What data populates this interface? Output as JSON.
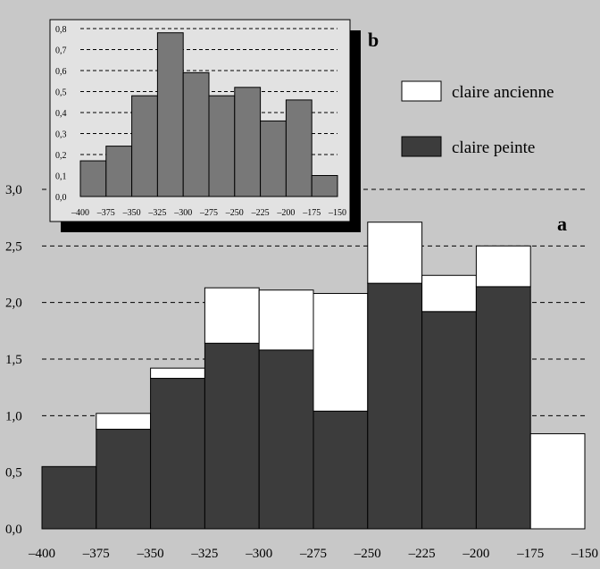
{
  "colors": {
    "background": "#c8c8c8",
    "inset_background": "#e2e2e2",
    "claire_peinte": "#3c3c3c",
    "claire_ancienne": "#ffffff",
    "inset_bars": "#787878",
    "grid": "#000000"
  },
  "legend": [
    {
      "label": "claire ancienne",
      "color": "#ffffff"
    },
    {
      "label": "claire peinte",
      "color": "#3c3c3c"
    }
  ],
  "chart_data": [
    {
      "panel": "a",
      "type": "bar",
      "stacked": true,
      "bin_edges": [
        -400,
        -375,
        -350,
        -325,
        -300,
        -275,
        -250,
        -225,
        -200,
        -175,
        -150
      ],
      "series": [
        {
          "name": "claire peinte",
          "values": [
            0.55,
            0.88,
            1.33,
            1.64,
            1.58,
            1.04,
            2.17,
            1.92,
            2.14,
            0.0
          ]
        },
        {
          "name": "claire ancienne",
          "values": [
            0.0,
            0.14,
            0.09,
            0.49,
            0.53,
            1.04,
            0.54,
            0.32,
            0.36,
            0.84
          ]
        }
      ],
      "xticks": [
        "–400",
        "–375",
        "–350",
        "–325",
        "–300",
        "–275",
        "–250",
        "–225",
        "–200",
        "–175",
        "–150"
      ],
      "yticks": [
        "0,0",
        "0,5",
        "1,0",
        "1,5",
        "2,0",
        "2,5",
        "3,0"
      ],
      "ylim": [
        0,
        3.0
      ],
      "grid": "horizontal dashed",
      "legend_position": "top-right"
    },
    {
      "panel": "b",
      "type": "bar",
      "bin_edges": [
        -400,
        -375,
        -350,
        -325,
        -300,
        -275,
        -250,
        -225,
        -200,
        -175,
        -150
      ],
      "values": [
        0.17,
        0.24,
        0.48,
        0.78,
        0.59,
        0.48,
        0.52,
        0.36,
        0.46,
        0.1
      ],
      "xticks": [
        "–400",
        "–375",
        "–350",
        "–325",
        "–300",
        "–275",
        "–250",
        "–225",
        "–200",
        "–175",
        "–150"
      ],
      "yticks": [
        "0,0",
        "0,1",
        "0,2",
        "0,3",
        "0,4",
        "0,5",
        "0,6",
        "0,7",
        "0,8"
      ],
      "ylim": [
        0,
        0.8
      ],
      "grid": "horizontal dashed",
      "position": "inset top-left"
    }
  ]
}
